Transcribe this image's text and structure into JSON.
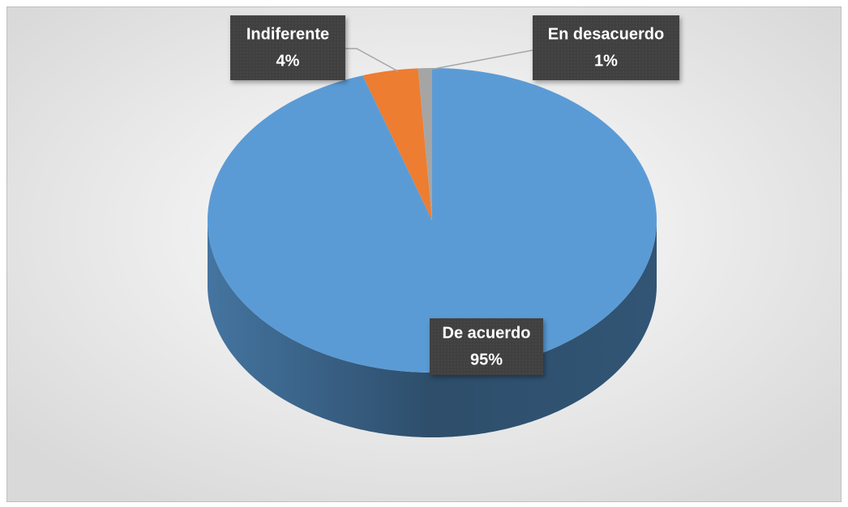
{
  "chart_data": {
    "type": "pie",
    "categories": [
      "De acuerdo",
      "Indiferente",
      "En desacuerdo"
    ],
    "values": [
      95,
      4,
      1
    ],
    "value_labels": [
      "95%",
      "4%",
      "1%"
    ],
    "colors": [
      "#5b9bd5",
      "#ed7d31",
      "#a5a5a5"
    ],
    "three_d": true
  }
}
